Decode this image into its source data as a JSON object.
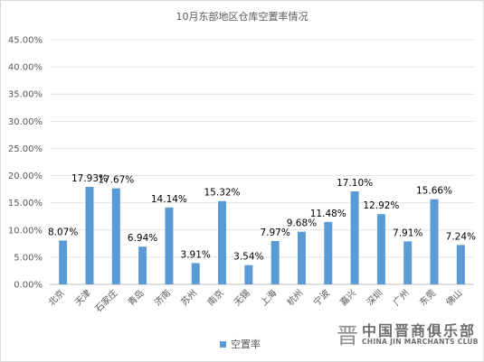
{
  "chart_data": {
    "type": "bar",
    "title": "10月东部地区仓库空置率情况",
    "categories": [
      "北京",
      "天津",
      "石家庄",
      "青岛",
      "济南",
      "苏州",
      "南京",
      "无锡",
      "上海",
      "杭州",
      "宁波",
      "嘉兴",
      "深圳",
      "广州",
      "东莞",
      "佛山"
    ],
    "series": [
      {
        "name": "空置率",
        "values": [
          8.07,
          17.93,
          17.67,
          6.94,
          14.14,
          3.91,
          15.32,
          3.54,
          7.97,
          9.68,
          11.48,
          17.1,
          12.92,
          7.91,
          15.66,
          7.24
        ],
        "labels": [
          "8.07%",
          "17.93%",
          "17.67%",
          "6.94%",
          "14.14%",
          "3.91%",
          "15.32%",
          "3.54%",
          "7.97%",
          "9.68%",
          "11.48%",
          "17.10%",
          "12.92%",
          "7.91%",
          "15.66%",
          "7.24%"
        ]
      }
    ],
    "ylim": [
      0,
      45
    ],
    "yticks": [
      "0.00%",
      "5.00%",
      "10.00%",
      "15.00%",
      "20.00%",
      "25.00%",
      "30.00%",
      "35.00%",
      "40.00%",
      "45.00%"
    ],
    "grid": true,
    "legend_position": "bottom",
    "bar_color": "#5b9bd5"
  },
  "watermark": {
    "logo": "晋",
    "name_cn": "中国晋商俱乐部",
    "name_en": "CHINA JIN MARCHANTS CLUB"
  }
}
